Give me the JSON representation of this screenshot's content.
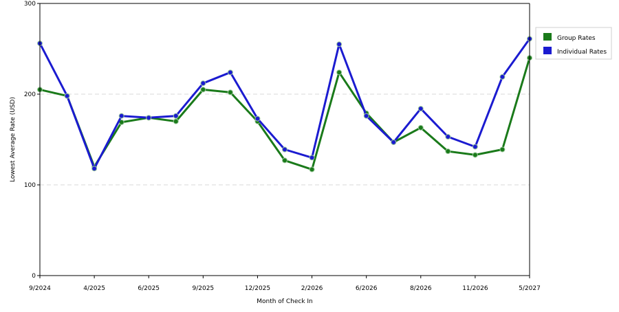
{
  "chart_data": {
    "type": "line",
    "title": "",
    "xlabel": "Month of Check In",
    "ylabel": "Lowest Average Rate (USD)",
    "ylim": [
      0,
      300
    ],
    "yticks": [
      "0",
      "100",
      "200",
      "300"
    ],
    "x_tick_labels": [
      "9/2024",
      "4/2025",
      "6/2025",
      "9/2025",
      "12/2025",
      "2/2026",
      "6/2026",
      "8/2026",
      "11/2026",
      "5/2027"
    ],
    "grid": "horizontal dashed",
    "legend_position": "right",
    "series": [
      {
        "name": "Group Rates",
        "color": "#1a7a1a",
        "values": [
          205,
          198,
          120,
          169,
          174,
          170,
          205,
          202,
          170,
          127,
          117,
          224,
          179,
          147,
          163,
          137,
          133,
          139,
          240
        ]
      },
      {
        "name": "Individual Rates",
        "color": "#1b1bd0",
        "values": [
          256,
          198,
          118,
          176,
          174,
          176,
          212,
          224,
          173,
          139,
          130,
          255,
          176,
          147,
          184,
          153,
          142,
          219,
          261
        ]
      }
    ]
  }
}
